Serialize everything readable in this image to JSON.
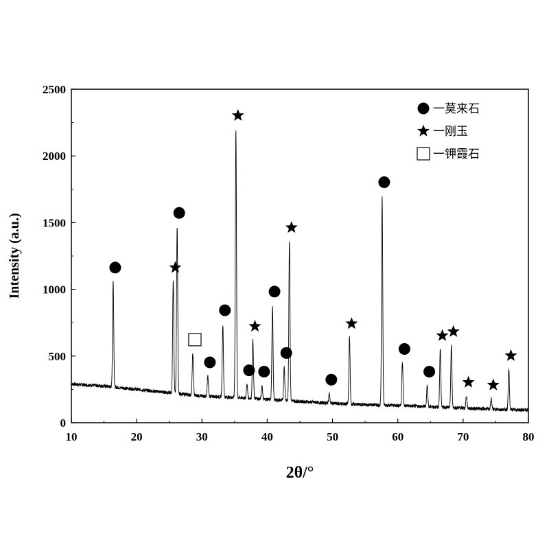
{
  "chart_data": {
    "type": "line",
    "xlabel": "2θ/°",
    "ylabel": "Intensity (a.u.)",
    "xlim": [
      10,
      80
    ],
    "ylim": [
      0,
      2500
    ],
    "xticks": [
      10,
      20,
      30,
      40,
      50,
      60,
      70,
      80
    ],
    "yticks": [
      0,
      500,
      1000,
      1500,
      2000,
      2500
    ],
    "grid": false,
    "legend": {
      "position": "top-right",
      "entries": [
        {
          "marker": "circle",
          "label": "一莫来石"
        },
        {
          "marker": "star",
          "label": "一刚玉"
        },
        {
          "marker": "square",
          "label": "一钾霞石"
        }
      ]
    },
    "baseline": [
      [
        10,
        290
      ],
      [
        15,
        275
      ],
      [
        20,
        250
      ],
      [
        25,
        225
      ],
      [
        30,
        200
      ],
      [
        35,
        190
      ],
      [
        40,
        175
      ],
      [
        45,
        160
      ],
      [
        50,
        145
      ],
      [
        55,
        135
      ],
      [
        60,
        130
      ],
      [
        65,
        120
      ],
      [
        70,
        110
      ],
      [
        75,
        100
      ],
      [
        80,
        95
      ]
    ],
    "peaks": [
      {
        "x": 16.4,
        "y": 1060,
        "marker": "circle"
      },
      {
        "x": 25.6,
        "y": 1060,
        "marker": "star"
      },
      {
        "x": 26.2,
        "y": 1470,
        "marker": "circle"
      },
      {
        "x": 28.6,
        "y": 520,
        "marker": "square"
      },
      {
        "x": 30.9,
        "y": 350,
        "marker": "circle"
      },
      {
        "x": 33.2,
        "y": 740,
        "marker": "circle"
      },
      {
        "x": 35.2,
        "y": 2200,
        "marker": "star"
      },
      {
        "x": 36.9,
        "y": 290,
        "marker": "circle"
      },
      {
        "x": 37.8,
        "y": 620,
        "marker": "star"
      },
      {
        "x": 39.2,
        "y": 280,
        "marker": "circle"
      },
      {
        "x": 40.8,
        "y": 880,
        "marker": "circle"
      },
      {
        "x": 42.6,
        "y": 420,
        "marker": "circle"
      },
      {
        "x": 43.4,
        "y": 1360,
        "marker": "star"
      },
      {
        "x": 49.5,
        "y": 220,
        "marker": "circle"
      },
      {
        "x": 52.6,
        "y": 640,
        "marker": "star"
      },
      {
        "x": 57.6,
        "y": 1700,
        "marker": "circle"
      },
      {
        "x": 60.7,
        "y": 450,
        "marker": "circle"
      },
      {
        "x": 64.5,
        "y": 280,
        "marker": "circle"
      },
      {
        "x": 66.5,
        "y": 550,
        "marker": "star"
      },
      {
        "x": 68.2,
        "y": 580,
        "marker": "star"
      },
      {
        "x": 70.5,
        "y": 200,
        "marker": "star"
      },
      {
        "x": 74.3,
        "y": 180,
        "marker": "star"
      },
      {
        "x": 77.0,
        "y": 400,
        "marker": "star"
      }
    ]
  }
}
